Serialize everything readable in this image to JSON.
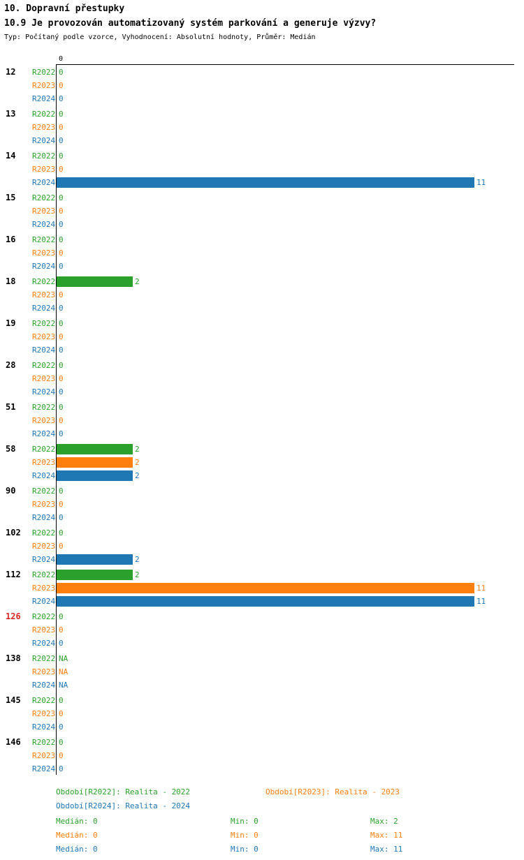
{
  "header": {
    "title": "10. Dopravní přestupky",
    "subtitle": "10.9 Je provozován automatizovaný systém parkování a generuje výzvy?",
    "meta": "Typ: Počítaný podle vzorce, Vyhodnocení: Absolutní hodnoty, Průměr: Medián"
  },
  "colors": {
    "r2022": "#2ca02c",
    "r2023": "#ff7f0e",
    "r2024": "#1f77b4",
    "highlight_category": "#d62728",
    "axis": "#000000"
  },
  "chart_data": {
    "type": "bar",
    "orientation": "horizontal",
    "title": "10.9 Je provozován automatizovaný systém parkování a generuje výzvy?",
    "categories": [
      "12",
      "13",
      "14",
      "15",
      "16",
      "18",
      "19",
      "28",
      "51",
      "58",
      "90",
      "102",
      "112",
      "126",
      "138",
      "145",
      "146"
    ],
    "highlighted_categories": [
      "126"
    ],
    "series": [
      {
        "name": "R2022",
        "color": "#2ca02c",
        "values": [
          0,
          0,
          0,
          0,
          0,
          2,
          0,
          0,
          0,
          2,
          0,
          0,
          2,
          0,
          "NA",
          0,
          0
        ]
      },
      {
        "name": "R2023",
        "color": "#ff7f0e",
        "values": [
          0,
          0,
          0,
          0,
          0,
          0,
          0,
          0,
          0,
          2,
          0,
          0,
          11,
          0,
          "NA",
          0,
          0
        ]
      },
      {
        "name": "R2024",
        "color": "#1f77b4",
        "values": [
          0,
          0,
          11,
          0,
          0,
          0,
          0,
          0,
          0,
          2,
          0,
          2,
          11,
          0,
          "NA",
          0,
          0
        ]
      }
    ],
    "value_axis": {
      "min": 0,
      "max": 12,
      "tick_labels": [
        "0"
      ]
    },
    "grid": false,
    "legend_position": "bottom"
  },
  "legend": [
    {
      "series": "R2022",
      "label": "Období[R2022]: Realita - 2022"
    },
    {
      "series": "R2023",
      "label": "Období[R2023]: Realita - 2023"
    },
    {
      "series": "R2024",
      "label": "Období[R2024]: Realita - 2024"
    }
  ],
  "stats": [
    {
      "series": "R2022",
      "median": "Medián: 0",
      "min": "Min: 0",
      "max": "Max: 2"
    },
    {
      "series": "R2023",
      "median": "Medián: 0",
      "min": "Min: 0",
      "max": "Max: 11"
    },
    {
      "series": "R2024",
      "median": "Medián: 0",
      "min": "Min: 0",
      "max": "Max: 11"
    }
  ]
}
